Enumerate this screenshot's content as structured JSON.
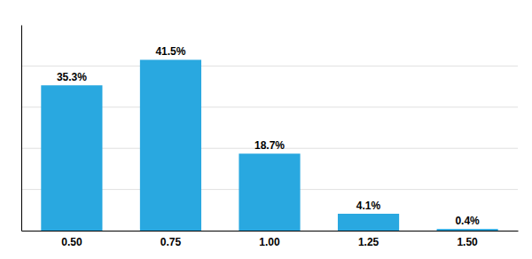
{
  "chart_data": {
    "type": "bar",
    "categories": [
      "0.50",
      "0.75",
      "1.00",
      "1.25",
      "1.50"
    ],
    "values": [
      35.3,
      41.5,
      18.7,
      4.1,
      0.4
    ],
    "value_labels": [
      "35.3%",
      "41.5%",
      "18.7%",
      "4.1%",
      "0.4%"
    ],
    "data_labels": true,
    "color": "#29a8e0",
    "ylim": [
      0,
      50
    ],
    "yticks": [
      10,
      20,
      30,
      40
    ],
    "grid": true,
    "tick_labels": "x"
  }
}
